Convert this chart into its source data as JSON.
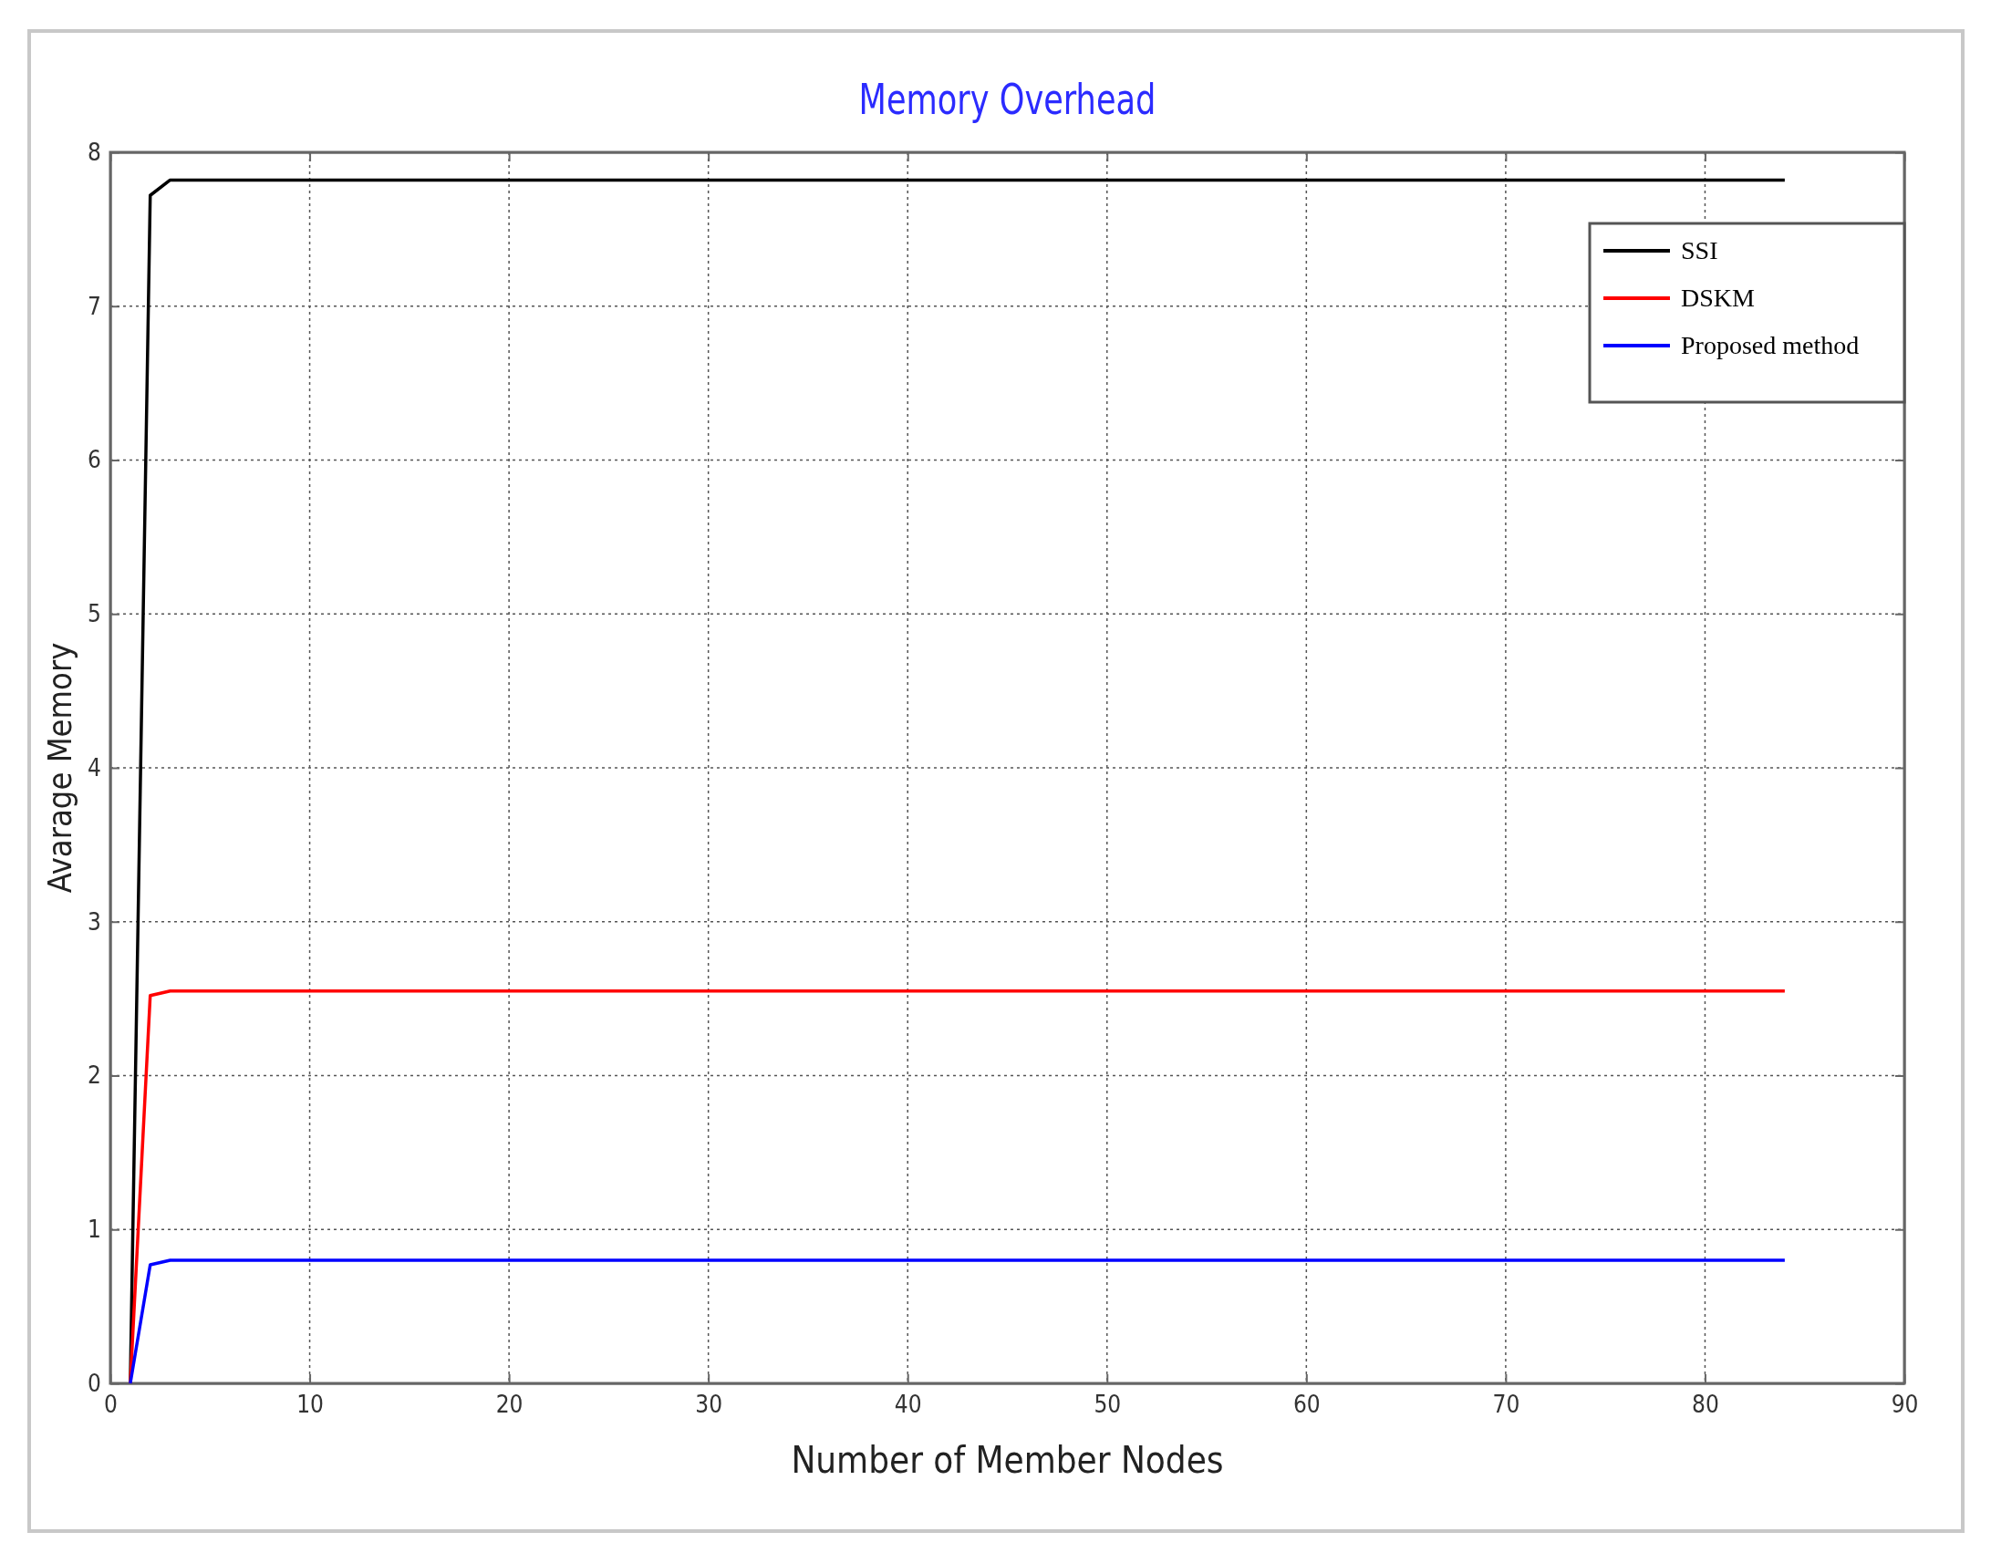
{
  "chart_data": {
    "type": "line",
    "title": "Memory Overhead",
    "xlabel": "Number of Member Nodes",
    "ylabel": "Avarage Memory",
    "xlim": [
      0,
      90
    ],
    "xticks": [
      0,
      10,
      20,
      30,
      40,
      50,
      60,
      70,
      80,
      90
    ],
    "ylim": [
      0,
      8
    ],
    "yticks": [
      0,
      1,
      2,
      3,
      4,
      5,
      6,
      7,
      8
    ],
    "grid": true,
    "legend": "top right",
    "line_style": "solid",
    "marker": "none",
    "series": [
      {
        "name": "SSI",
        "color": "#000000",
        "x": [
          1,
          2,
          3,
          84
        ],
        "values": [
          0,
          7.72,
          7.82,
          7.82
        ]
      },
      {
        "name": "DSKM",
        "color": "#ff0000",
        "x": [
          1,
          2,
          3,
          84
        ],
        "values": [
          0,
          2.52,
          2.55,
          2.55
        ]
      },
      {
        "name": "Proposed method",
        "color": "#0000ff",
        "x": [
          1,
          2,
          3,
          84
        ],
        "values": [
          0,
          0.77,
          0.8,
          0.8
        ]
      }
    ]
  }
}
